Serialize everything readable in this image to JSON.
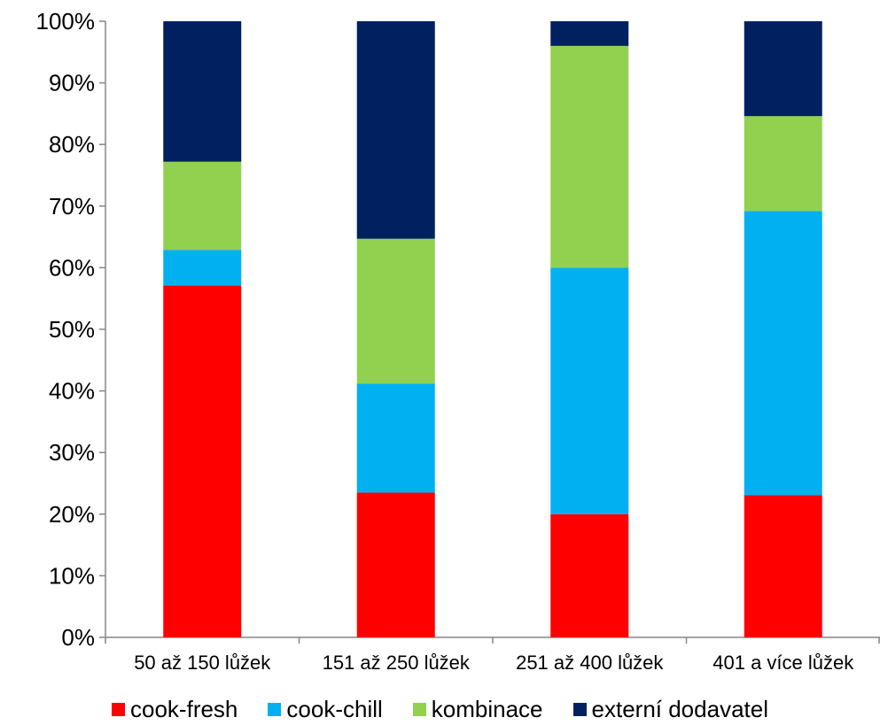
{
  "chart_data": {
    "type": "bar",
    "stacked": true,
    "percent": true,
    "categories": [
      "50 až 150 lůžek",
      "151 až 250 lůžek",
      "251 až 400 lůžek",
      "401 a více lůžek"
    ],
    "series": [
      {
        "name": "cook-fresh",
        "color": "#ff0000",
        "values": [
          57.1,
          23.5,
          20.0,
          23.1
        ]
      },
      {
        "name": "cook-chill",
        "color": "#00b0f0",
        "values": [
          5.8,
          17.7,
          40.0,
          46.1
        ]
      },
      {
        "name": "kombinace",
        "color": "#92d050",
        "values": [
          14.3,
          23.5,
          36.0,
          15.4
        ]
      },
      {
        "name": "externí dodavatel",
        "color": "#002060",
        "values": [
          22.8,
          35.3,
          4.0,
          15.4
        ]
      }
    ],
    "yticks": [
      "0%",
      "10%",
      "20%",
      "30%",
      "40%",
      "50%",
      "60%",
      "70%",
      "80%",
      "90%",
      "100%"
    ],
    "ylim": [
      0,
      100
    ],
    "grid": false,
    "legend_position": "bottom",
    "title": "",
    "xlabel": "",
    "ylabel": ""
  }
}
